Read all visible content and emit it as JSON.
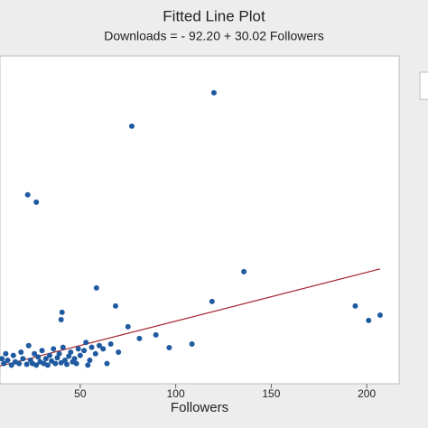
{
  "chart_data": {
    "type": "scatter",
    "title": "Fitted Line Plot",
    "subtitle": "Downloads = - 92.20 + 30.02 Followers",
    "x_label": "Followers",
    "xlim": [
      8,
      216
    ],
    "xticks": [
      50,
      100,
      150,
      200
    ],
    "ylim": [
      0,
      17500
    ],
    "series": [
      {
        "color": "#1f5aa0",
        "x": [
          120,
          77,
          22.5,
          27,
          135.7,
          119,
          58.5,
          68.5,
          194,
          201,
          207,
          40.5,
          40,
          75,
          81,
          89.6,
          96.6,
          108.5,
          10,
          12,
          14,
          15,
          16,
          18,
          19,
          20,
          22,
          23,
          24,
          25,
          26,
          27,
          28,
          29,
          30,
          31,
          32,
          33,
          34,
          35,
          36,
          37,
          38,
          39,
          40,
          41,
          42,
          43,
          44,
          45,
          46,
          47,
          48,
          49,
          50,
          52,
          53,
          55,
          56,
          58,
          60,
          62,
          64,
          66,
          70,
          54,
          11,
          9
        ],
        "values": [
          16960,
          14900,
          10680,
          10230,
          5950,
          4117,
          4950,
          3840,
          3840,
          2950,
          3280,
          3450,
          3000,
          2560,
          1840,
          2060,
          1280,
          1500,
          300,
          500,
          200,
          800,
          400,
          300,
          1000,
          600,
          250,
          1400,
          500,
          300,
          900,
          200,
          700,
          400,
          1100,
          300,
          600,
          200,
          800,
          450,
          1200,
          300,
          650,
          900,
          350,
          1300,
          500,
          250,
          750,
          1000,
          400,
          600,
          300,
          1200,
          800,
          1100,
          1600,
          500,
          1300,
          900,
          1400,
          1200,
          300,
          1500,
          1000,
          200,
          900,
          600
        ]
      }
    ],
    "fit_line": {
      "color": "#a3262e",
      "x": [
        8,
        207
      ],
      "values": [
        148,
        6122
      ]
    }
  }
}
